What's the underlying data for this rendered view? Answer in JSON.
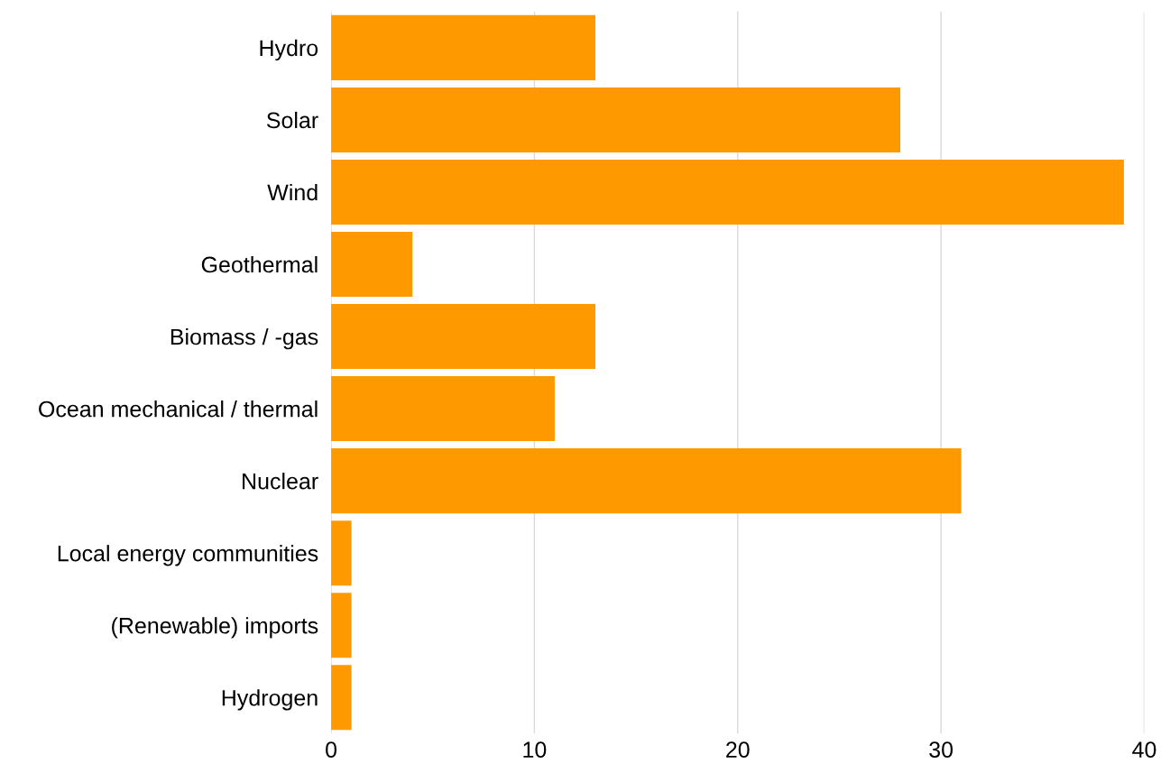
{
  "chart_data": {
    "type": "bar",
    "orientation": "horizontal",
    "categories": [
      "Hydro",
      "Solar",
      "Wind",
      "Geothermal",
      "Biomass / -gas",
      "Ocean mechanical / thermal",
      "Nuclear",
      "Local energy communities",
      "(Renewable) imports",
      "Hydrogen"
    ],
    "values": [
      13,
      28,
      39,
      4,
      13,
      11,
      31,
      1,
      1,
      1
    ],
    "color": "#ff9900",
    "xlim": [
      0,
      40
    ],
    "xticks": [
      0,
      10,
      20,
      30,
      40
    ],
    "grid": "x"
  }
}
